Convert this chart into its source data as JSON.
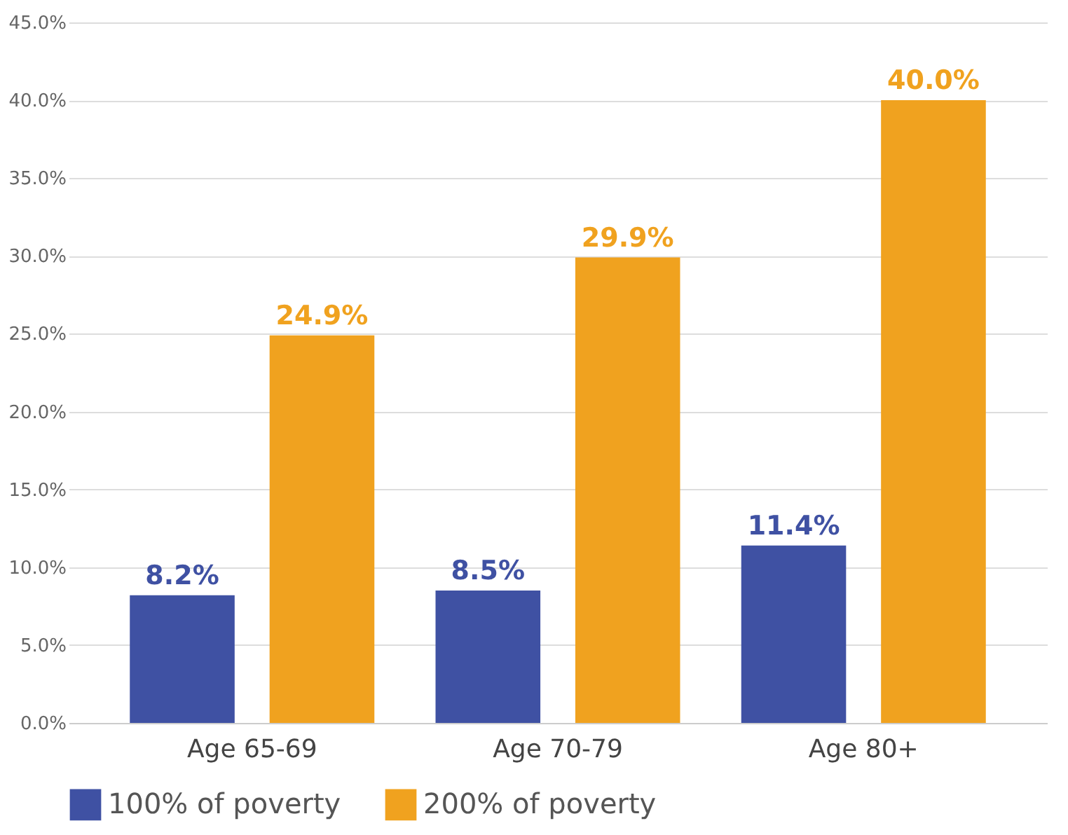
{
  "chart_data": {
    "type": "bar",
    "categories": [
      "Age 65-69",
      "Age 70-79",
      "Age 80+"
    ],
    "series": [
      {
        "name": "100% of poverty",
        "color": "#3f51a3",
        "values": [
          8.2,
          8.5,
          11.4
        ],
        "value_labels": [
          "8.2%",
          "8.5%",
          "11.4%"
        ]
      },
      {
        "name": "200% of poverty",
        "color": "#f0a21f",
        "values": [
          24.9,
          29.9,
          40.0
        ],
        "value_labels": [
          "24.9%",
          "29.9%",
          "40.0%"
        ]
      }
    ],
    "ylim": [
      0,
      45
    ],
    "yticks": [
      {
        "value": 0,
        "label": "0.0%"
      },
      {
        "value": 5,
        "label": "5.0%"
      },
      {
        "value": 10,
        "label": "10.0%"
      },
      {
        "value": 15,
        "label": "15.0%"
      },
      {
        "value": 20,
        "label": "20.0%"
      },
      {
        "value": 25,
        "label": "25.0%"
      },
      {
        "value": 30,
        "label": "30.0%"
      },
      {
        "value": 35,
        "label": "35.0%"
      },
      {
        "value": 40,
        "label": "40.0%"
      },
      {
        "value": 45,
        "label": "45.0%"
      }
    ],
    "grid": "y",
    "legend": "bottom"
  }
}
